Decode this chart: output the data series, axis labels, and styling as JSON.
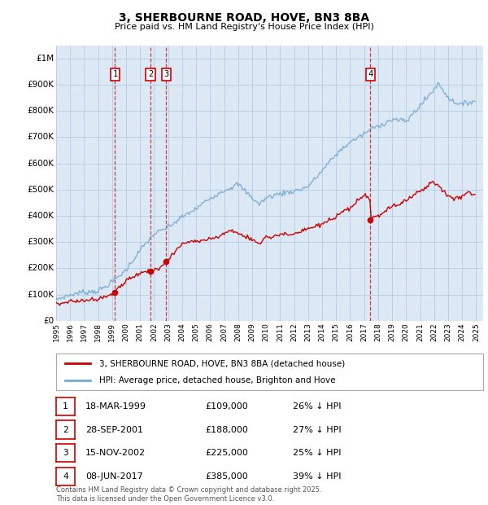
{
  "title": "3, SHERBOURNE ROAD, HOVE, BN3 8BA",
  "subtitle": "Price paid vs. HM Land Registry's House Price Index (HPI)",
  "background_color": "#ffffff",
  "plot_bg_color": "#dce9f5",
  "grid_color": "#b8cfe8",
  "ylim": [
    0,
    1050000
  ],
  "yticks": [
    0,
    100000,
    200000,
    300000,
    400000,
    500000,
    600000,
    700000,
    800000,
    900000,
    1000000
  ],
  "ytick_labels": [
    "£0",
    "£100K",
    "£200K",
    "£300K",
    "£400K",
    "£500K",
    "£600K",
    "£700K",
    "£800K",
    "£900K",
    "£1M"
  ],
  "sale_dates_num": [
    1999.21,
    2001.74,
    2002.87,
    2017.44
  ],
  "sale_prices": [
    109000,
    188000,
    225000,
    385000
  ],
  "sale_labels": [
    "1",
    "2",
    "3",
    "4"
  ],
  "sale_color": "#cc0000",
  "hpi_color": "#7aaad4",
  "legend_sale": "3, SHERBOURNE ROAD, HOVE, BN3 8BA (detached house)",
  "legend_hpi": "HPI: Average price, detached house, Brighton and Hove",
  "table_data": [
    [
      "1",
      "18-MAR-1999",
      "£109,000",
      "26% ↓ HPI"
    ],
    [
      "2",
      "28-SEP-2001",
      "£188,000",
      "27% ↓ HPI"
    ],
    [
      "3",
      "15-NOV-2002",
      "£225,000",
      "25% ↓ HPI"
    ],
    [
      "4",
      "08-JUN-2017",
      "£385,000",
      "39% ↓ HPI"
    ]
  ],
  "footer": "Contains HM Land Registry data © Crown copyright and database right 2025.\nThis data is licensed under the Open Government Licence v3.0.",
  "xmin": 1995.0,
  "xmax": 2025.5
}
